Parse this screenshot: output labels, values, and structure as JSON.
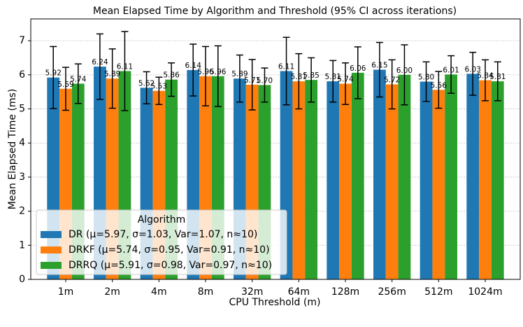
{
  "chart_data": {
    "type": "bar",
    "title": "Mean Elapsed Time by Algorithm and Threshold (95% CI across iterations)",
    "x_label": "CPU Threshold (m)",
    "y_label": "Mean Elapsed Time (ms)",
    "categories": [
      "1m",
      "2m",
      "4m",
      "8m",
      "32m",
      "64m",
      "128m",
      "256m",
      "512m",
      "1024m"
    ],
    "ylim": [
      0,
      7.64
    ],
    "yticks": [
      0,
      1,
      2,
      3,
      4,
      5,
      6,
      7
    ],
    "grid": true,
    "legend_title": "Algorithm",
    "legend_position": "lower left",
    "series": [
      {
        "name": "DR (μ=5.97, σ=1.03, Var=1.07, n≈10)",
        "color": "#1f77b4",
        "values": [
          5.92,
          6.24,
          5.62,
          6.14,
          5.89,
          6.11,
          5.81,
          6.15,
          5.8,
          6.03
        ],
        "value_labels": [
          "5.92",
          "6.24",
          "5.62",
          "6.14",
          "5.89",
          "6.11",
          "5.81",
          "6.15",
          "5.80",
          "6.03"
        ],
        "errors": [
          0.91,
          0.96,
          0.47,
          0.76,
          0.69,
          0.99,
          0.61,
          0.8,
          0.58,
          0.63
        ]
      },
      {
        "name": "DRKF (μ=5.74, σ=0.95, Var=0.91, n≈10)",
        "color": "#ff7f0e",
        "values": [
          5.59,
          5.89,
          5.53,
          5.96,
          5.71,
          5.81,
          5.74,
          5.72,
          5.56,
          5.84
        ],
        "value_labels": [
          "5.59",
          "5.89",
          "5.53",
          "5.96",
          "5.71",
          "5.81",
          "5.74",
          "5.72",
          "5.56",
          "5.84"
        ],
        "errors": [
          0.63,
          0.87,
          0.4,
          0.87,
          0.74,
          0.81,
          0.61,
          0.72,
          0.54,
          0.6
        ]
      },
      {
        "name": "DRRQ (μ=5.91, σ=0.98, Var=0.97, n≈10)",
        "color": "#2ca02c",
        "values": [
          5.74,
          6.11,
          5.86,
          5.96,
          5.7,
          5.85,
          6.06,
          6.0,
          6.01,
          5.81
        ],
        "value_labels": [
          "5.74",
          "6.11",
          "5.86",
          "5.96",
          "5.70",
          "5.85",
          "6.06",
          "6.00",
          "6.01",
          "5.81"
        ],
        "errors": [
          0.58,
          1.16,
          0.49,
          0.89,
          0.5,
          0.65,
          0.76,
          0.88,
          0.55,
          0.57
        ]
      }
    ]
  }
}
